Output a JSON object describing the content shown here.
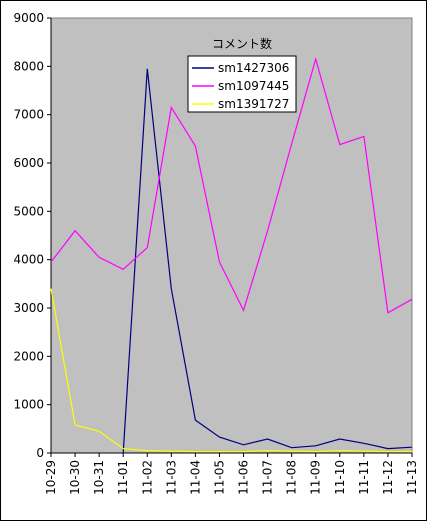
{
  "chart_data": {
    "type": "line",
    "categories": [
      "10-29",
      "10-30",
      "10-31",
      "11-01",
      "11-02",
      "11-03",
      "11-04",
      "11-05",
      "11-06",
      "11-07",
      "11-08",
      "11-09",
      "11-10",
      "11-11",
      "11-12",
      "11-13"
    ],
    "ylim": [
      0,
      9000
    ],
    "yticks": [
      0,
      1000,
      2000,
      3000,
      4000,
      5000,
      6000,
      7000,
      8000,
      9000
    ],
    "grid": false,
    "plot_background": "#c0c0c0",
    "legend": {
      "title": "コメント数",
      "placement": "top-center-right"
    },
    "series": [
      {
        "name": "sm1427306",
        "color": "#000080",
        "values": [
          null,
          null,
          null,
          0,
          7950,
          3400,
          680,
          330,
          170,
          290,
          110,
          150,
          290,
          200,
          90,
          120
        ]
      },
      {
        "name": "sm1097445",
        "color": "#ff00ff",
        "values": [
          3950,
          4600,
          4050,
          3800,
          4250,
          7150,
          6350,
          3950,
          2950,
          4600,
          6400,
          8150,
          6380,
          6550,
          2900,
          3180
        ]
      },
      {
        "name": "sm1391727",
        "color": "#ffff00",
        "values": [
          3400,
          580,
          450,
          90,
          50,
          40,
          30,
          30,
          30,
          50,
          40,
          30,
          50,
          40,
          30,
          30
        ]
      }
    ]
  }
}
